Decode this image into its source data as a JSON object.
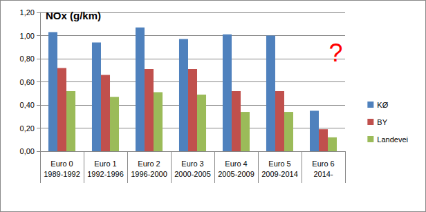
{
  "chart_data": {
    "type": "bar",
    "y_label": "NOx (g/km)",
    "categories": [
      "Euro 0\n1989-1992",
      "Euro 1\n1992-1996",
      "Euro 2\n1996-2000",
      "Euro 3\n2000-2005",
      "Euro 4\n2005-2009",
      "Euro 5\n2009-2014",
      "Euro 6\n2014-"
    ],
    "series": [
      {
        "name": "KØ",
        "color": "#4f81bd",
        "values": [
          1.03,
          0.94,
          1.07,
          0.97,
          1.01,
          1.0,
          0.35
        ]
      },
      {
        "name": "BY",
        "color": "#c0504d",
        "values": [
          0.72,
          0.66,
          0.71,
          0.71,
          0.52,
          0.52,
          0.19
        ]
      },
      {
        "name": "Landevei",
        "color": "#9bbb59",
        "values": [
          0.52,
          0.47,
          0.51,
          0.49,
          0.34,
          0.34,
          0.12
        ]
      }
    ],
    "ylim": [
      0,
      1.2
    ],
    "yticks": [
      {
        "value": 0,
        "label": "0,00"
      },
      {
        "value": 0.2,
        "label": "0,20"
      },
      {
        "value": 0.4,
        "label": "0,40"
      },
      {
        "value": 0.6,
        "label": "0,60"
      },
      {
        "value": 0.8,
        "label": "0,80"
      },
      {
        "value": 1.0,
        "label": "1,00"
      },
      {
        "value": 1.2,
        "label": "1,20"
      }
    ],
    "grid": true,
    "legend": "right",
    "annotations": [
      {
        "text": "?",
        "color": "#ff0000"
      }
    ]
  }
}
